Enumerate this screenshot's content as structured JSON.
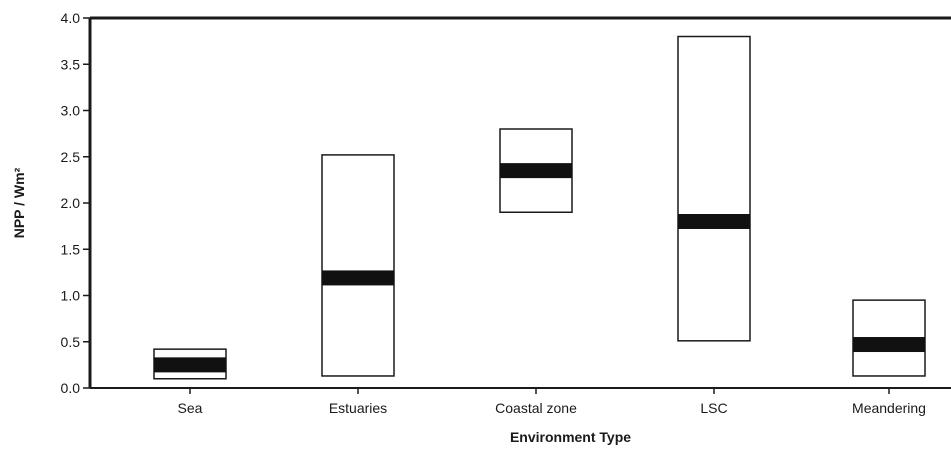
{
  "chart_data": {
    "type": "box",
    "xlabel": "Environment Type",
    "ylabel": "NPP / Wm²",
    "ylim": [
      0,
      4.0
    ],
    "yticks": [
      "0.0",
      "0.5",
      "1.0",
      "1.5",
      "2.0",
      "2.5",
      "3.0",
      "3.5",
      "4.0"
    ],
    "categories": [
      "Sea",
      "Estuaries",
      "Coastal zone",
      "LSC",
      "Meandering"
    ],
    "ranges": [
      {
        "low": 0.1,
        "high": 0.42,
        "mid": 0.25
      },
      {
        "low": 0.13,
        "high": 2.52,
        "mid": 1.19
      },
      {
        "low": 1.9,
        "high": 2.8,
        "mid": 2.35
      },
      {
        "low": 0.51,
        "high": 3.8,
        "mid": 1.8
      },
      {
        "low": 0.13,
        "high": 0.95,
        "mid": 0.47
      }
    ],
    "grid": false,
    "legend": "none",
    "colors": {
      "axis": "#1a1a1a",
      "box_fill": "#ffffff",
      "box_stroke": "#1a1a1a",
      "median_band": "#111111"
    }
  }
}
